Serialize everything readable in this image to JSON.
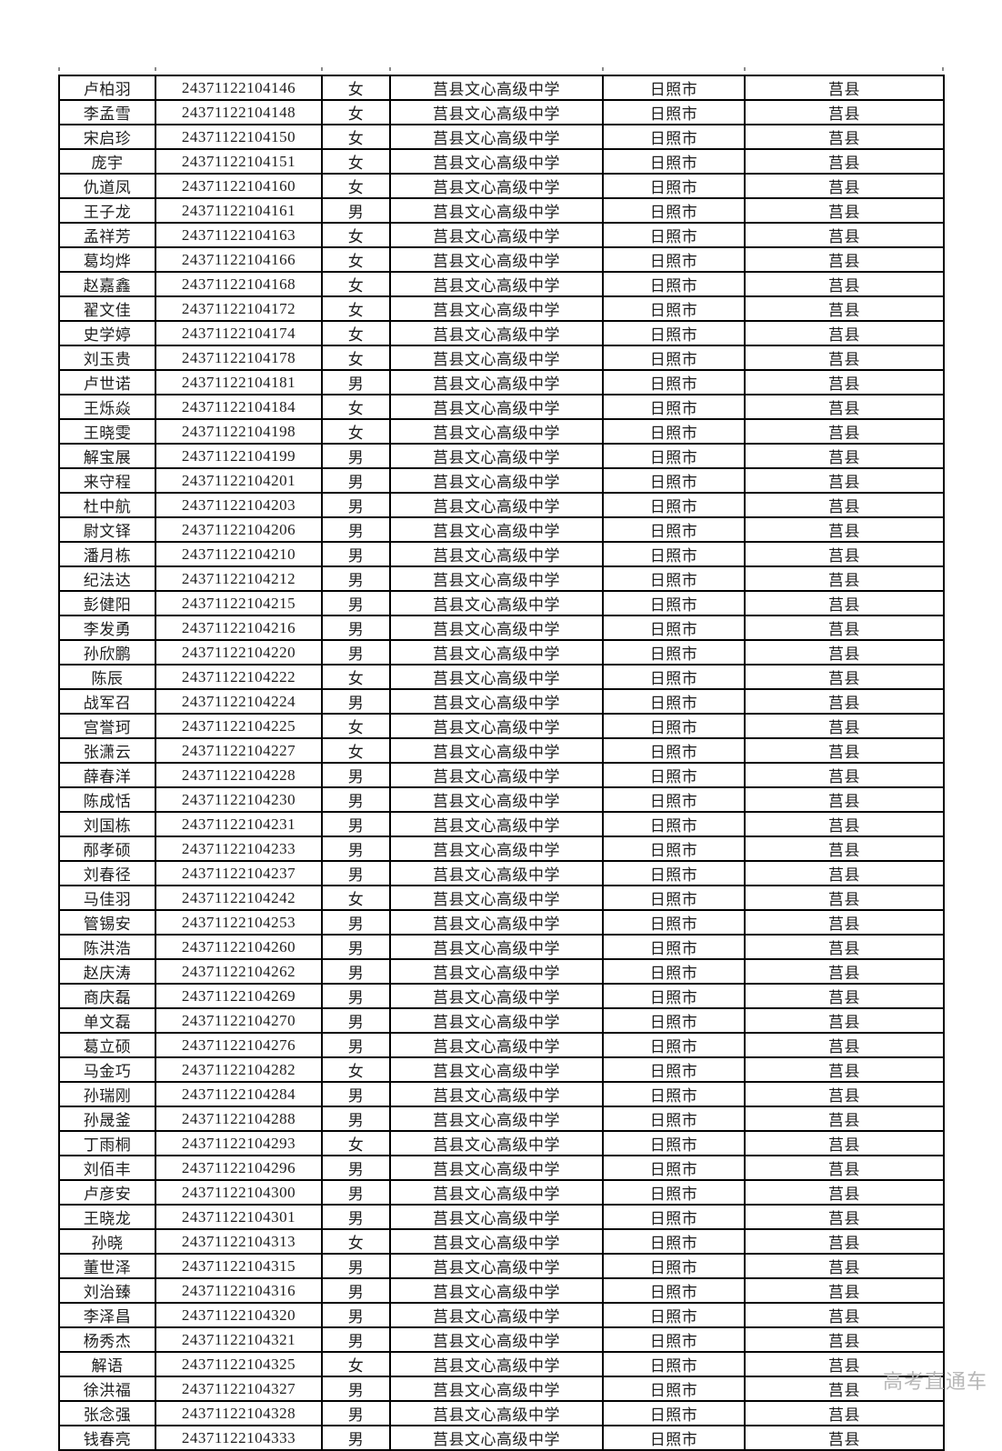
{
  "page": {
    "watermark": "高考直通车"
  },
  "table": {
    "school_common": "莒县文心高级中学",
    "city_common": "日照市",
    "county_common": "莒县",
    "rows": [
      {
        "name": "卢柏羽",
        "exam_number": "24371122104146",
        "gender": "女",
        "school": "莒县文心高级中学",
        "city": "日照市",
        "county": "莒县"
      },
      {
        "name": "李孟雪",
        "exam_number": "24371122104148",
        "gender": "女",
        "school": "莒县文心高级中学",
        "city": "日照市",
        "county": "莒县"
      },
      {
        "name": "宋启珍",
        "exam_number": "24371122104150",
        "gender": "女",
        "school": "莒县文心高级中学",
        "city": "日照市",
        "county": "莒县"
      },
      {
        "name": "庞宇",
        "exam_number": "24371122104151",
        "gender": "女",
        "school": "莒县文心高级中学",
        "city": "日照市",
        "county": "莒县"
      },
      {
        "name": "仇道凤",
        "exam_number": "24371122104160",
        "gender": "女",
        "school": "莒县文心高级中学",
        "city": "日照市",
        "county": "莒县"
      },
      {
        "name": "王子龙",
        "exam_number": "24371122104161",
        "gender": "男",
        "school": "莒县文心高级中学",
        "city": "日照市",
        "county": "莒县"
      },
      {
        "name": "孟祥芳",
        "exam_number": "24371122104163",
        "gender": "女",
        "school": "莒县文心高级中学",
        "city": "日照市",
        "county": "莒县"
      },
      {
        "name": "葛均烨",
        "exam_number": "24371122104166",
        "gender": "女",
        "school": "莒县文心高级中学",
        "city": "日照市",
        "county": "莒县"
      },
      {
        "name": "赵嘉鑫",
        "exam_number": "24371122104168",
        "gender": "女",
        "school": "莒县文心高级中学",
        "city": "日照市",
        "county": "莒县"
      },
      {
        "name": "翟文佳",
        "exam_number": "24371122104172",
        "gender": "女",
        "school": "莒县文心高级中学",
        "city": "日照市",
        "county": "莒县"
      },
      {
        "name": "史学婷",
        "exam_number": "24371122104174",
        "gender": "女",
        "school": "莒县文心高级中学",
        "city": "日照市",
        "county": "莒县"
      },
      {
        "name": "刘玉贵",
        "exam_number": "24371122104178",
        "gender": "女",
        "school": "莒县文心高级中学",
        "city": "日照市",
        "county": "莒县"
      },
      {
        "name": "卢世诺",
        "exam_number": "24371122104181",
        "gender": "男",
        "school": "莒县文心高级中学",
        "city": "日照市",
        "county": "莒县"
      },
      {
        "name": "王烁焱",
        "exam_number": "24371122104184",
        "gender": "女",
        "school": "莒县文心高级中学",
        "city": "日照市",
        "county": "莒县"
      },
      {
        "name": "王晓雯",
        "exam_number": "24371122104198",
        "gender": "女",
        "school": "莒县文心高级中学",
        "city": "日照市",
        "county": "莒县"
      },
      {
        "name": "解宝展",
        "exam_number": "24371122104199",
        "gender": "男",
        "school": "莒县文心高级中学",
        "city": "日照市",
        "county": "莒县"
      },
      {
        "name": "来守程",
        "exam_number": "24371122104201",
        "gender": "男",
        "school": "莒县文心高级中学",
        "city": "日照市",
        "county": "莒县"
      },
      {
        "name": "杜中航",
        "exam_number": "24371122104203",
        "gender": "男",
        "school": "莒县文心高级中学",
        "city": "日照市",
        "county": "莒县"
      },
      {
        "name": "尉文铎",
        "exam_number": "24371122104206",
        "gender": "男",
        "school": "莒县文心高级中学",
        "city": "日照市",
        "county": "莒县"
      },
      {
        "name": "潘月栋",
        "exam_number": "24371122104210",
        "gender": "男",
        "school": "莒县文心高级中学",
        "city": "日照市",
        "county": "莒县"
      },
      {
        "name": "纪法达",
        "exam_number": "24371122104212",
        "gender": "男",
        "school": "莒县文心高级中学",
        "city": "日照市",
        "county": "莒县"
      },
      {
        "name": "彭健阳",
        "exam_number": "24371122104215",
        "gender": "男",
        "school": "莒县文心高级中学",
        "city": "日照市",
        "county": "莒县"
      },
      {
        "name": "李发勇",
        "exam_number": "24371122104216",
        "gender": "男",
        "school": "莒县文心高级中学",
        "city": "日照市",
        "county": "莒县"
      },
      {
        "name": "孙欣鹏",
        "exam_number": "24371122104220",
        "gender": "男",
        "school": "莒县文心高级中学",
        "city": "日照市",
        "county": "莒县"
      },
      {
        "name": "陈辰",
        "exam_number": "24371122104222",
        "gender": "女",
        "school": "莒县文心高级中学",
        "city": "日照市",
        "county": "莒县"
      },
      {
        "name": "战军召",
        "exam_number": "24371122104224",
        "gender": "男",
        "school": "莒县文心高级中学",
        "city": "日照市",
        "county": "莒县"
      },
      {
        "name": "宫誉珂",
        "exam_number": "24371122104225",
        "gender": "女",
        "school": "莒县文心高级中学",
        "city": "日照市",
        "county": "莒县"
      },
      {
        "name": "张潇云",
        "exam_number": "24371122104227",
        "gender": "女",
        "school": "莒县文心高级中学",
        "city": "日照市",
        "county": "莒县"
      },
      {
        "name": "薛春洋",
        "exam_number": "24371122104228",
        "gender": "男",
        "school": "莒县文心高级中学",
        "city": "日照市",
        "county": "莒县"
      },
      {
        "name": "陈成恬",
        "exam_number": "24371122104230",
        "gender": "男",
        "school": "莒县文心高级中学",
        "city": "日照市",
        "county": "莒县"
      },
      {
        "name": "刘国栋",
        "exam_number": "24371122104231",
        "gender": "男",
        "school": "莒县文心高级中学",
        "city": "日照市",
        "county": "莒县"
      },
      {
        "name": "邴孝硕",
        "exam_number": "24371122104233",
        "gender": "男",
        "school": "莒县文心高级中学",
        "city": "日照市",
        "county": "莒县"
      },
      {
        "name": "刘春径",
        "exam_number": "24371122104237",
        "gender": "男",
        "school": "莒县文心高级中学",
        "city": "日照市",
        "county": "莒县"
      },
      {
        "name": "马佳羽",
        "exam_number": "24371122104242",
        "gender": "女",
        "school": "莒县文心高级中学",
        "city": "日照市",
        "county": "莒县"
      },
      {
        "name": "管锡安",
        "exam_number": "24371122104253",
        "gender": "男",
        "school": "莒县文心高级中学",
        "city": "日照市",
        "county": "莒县"
      },
      {
        "name": "陈洪浩",
        "exam_number": "24371122104260",
        "gender": "男",
        "school": "莒县文心高级中学",
        "city": "日照市",
        "county": "莒县"
      },
      {
        "name": "赵庆涛",
        "exam_number": "24371122104262",
        "gender": "男",
        "school": "莒县文心高级中学",
        "city": "日照市",
        "county": "莒县"
      },
      {
        "name": "商庆磊",
        "exam_number": "24371122104269",
        "gender": "男",
        "school": "莒县文心高级中学",
        "city": "日照市",
        "county": "莒县"
      },
      {
        "name": "单文磊",
        "exam_number": "24371122104270",
        "gender": "男",
        "school": "莒县文心高级中学",
        "city": "日照市",
        "county": "莒县"
      },
      {
        "name": "葛立硕",
        "exam_number": "24371122104276",
        "gender": "男",
        "school": "莒县文心高级中学",
        "city": "日照市",
        "county": "莒县"
      },
      {
        "name": "马金巧",
        "exam_number": "24371122104282",
        "gender": "女",
        "school": "莒县文心高级中学",
        "city": "日照市",
        "county": "莒县"
      },
      {
        "name": "孙瑞刚",
        "exam_number": "24371122104284",
        "gender": "男",
        "school": "莒县文心高级中学",
        "city": "日照市",
        "county": "莒县"
      },
      {
        "name": "孙晟釜",
        "exam_number": "24371122104288",
        "gender": "男",
        "school": "莒县文心高级中学",
        "city": "日照市",
        "county": "莒县"
      },
      {
        "name": "丁雨桐",
        "exam_number": "24371122104293",
        "gender": "女",
        "school": "莒县文心高级中学",
        "city": "日照市",
        "county": "莒县"
      },
      {
        "name": "刘佰丰",
        "exam_number": "24371122104296",
        "gender": "男",
        "school": "莒县文心高级中学",
        "city": "日照市",
        "county": "莒县"
      },
      {
        "name": "卢彦安",
        "exam_number": "24371122104300",
        "gender": "男",
        "school": "莒县文心高级中学",
        "city": "日照市",
        "county": "莒县"
      },
      {
        "name": "王晓龙",
        "exam_number": "24371122104301",
        "gender": "男",
        "school": "莒县文心高级中学",
        "city": "日照市",
        "county": "莒县"
      },
      {
        "name": "孙晓",
        "exam_number": "24371122104313",
        "gender": "女",
        "school": "莒县文心高级中学",
        "city": "日照市",
        "county": "莒县"
      },
      {
        "name": "董世泽",
        "exam_number": "24371122104315",
        "gender": "男",
        "school": "莒县文心高级中学",
        "city": "日照市",
        "county": "莒县"
      },
      {
        "name": "刘治臻",
        "exam_number": "24371122104316",
        "gender": "男",
        "school": "莒县文心高级中学",
        "city": "日照市",
        "county": "莒县"
      },
      {
        "name": "李泽昌",
        "exam_number": "24371122104320",
        "gender": "男",
        "school": "莒县文心高级中学",
        "city": "日照市",
        "county": "莒县"
      },
      {
        "name": "杨秀杰",
        "exam_number": "24371122104321",
        "gender": "男",
        "school": "莒县文心高级中学",
        "city": "日照市",
        "county": "莒县"
      },
      {
        "name": "解语",
        "exam_number": "24371122104325",
        "gender": "女",
        "school": "莒县文心高级中学",
        "city": "日照市",
        "county": "莒县"
      },
      {
        "name": "徐洪福",
        "exam_number": "24371122104327",
        "gender": "男",
        "school": "莒县文心高级中学",
        "city": "日照市",
        "county": "莒县"
      },
      {
        "name": "张念强",
        "exam_number": "24371122104328",
        "gender": "男",
        "school": "莒县文心高级中学",
        "city": "日照市",
        "county": "莒县"
      },
      {
        "name": "钱春亮",
        "exam_number": "24371122104333",
        "gender": "男",
        "school": "莒县文心高级中学",
        "city": "日照市",
        "county": "莒县"
      }
    ]
  }
}
